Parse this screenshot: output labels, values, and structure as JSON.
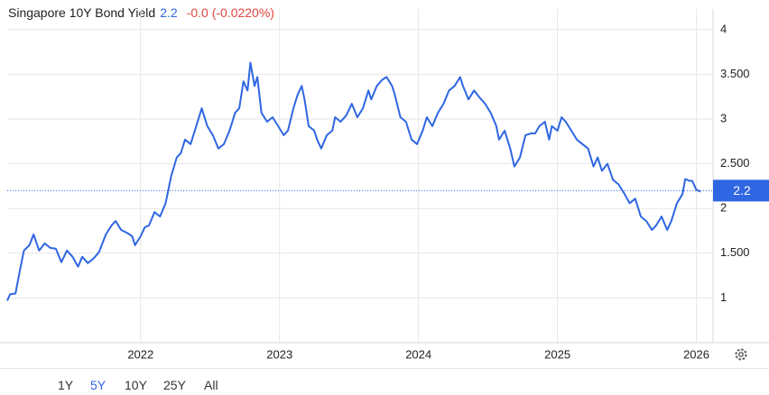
{
  "chart_data": {
    "type": "line",
    "title": "Singapore 10Y Bond Yield",
    "current_value": 2.2,
    "change": "-0.0 (-0.0220%)",
    "color": "#2f66e2",
    "x": [
      2021.04,
      2021.06,
      2021.1,
      2021.13,
      2021.16,
      2021.2,
      2021.23,
      2021.27,
      2021.31,
      2021.35,
      2021.39,
      2021.43,
      2021.47,
      2021.51,
      2021.55,
      2021.58,
      2021.62,
      2021.66,
      2021.7,
      2021.75,
      2021.79,
      2021.82,
      2021.86,
      2021.9,
      2021.94,
      2021.96,
      2022.0,
      2022.03,
      2022.06,
      2022.1,
      2022.14,
      2022.18,
      2022.22,
      2022.26,
      2022.29,
      2022.32,
      2022.36,
      2022.4,
      2022.44,
      2022.48,
      2022.52,
      2022.56,
      2022.6,
      2022.64,
      2022.68,
      2022.71,
      2022.74,
      2022.77,
      2022.79,
      2022.82,
      2022.84,
      2022.87,
      2022.91,
      2022.95,
      2022.99,
      2023.03,
      2023.06,
      2023.1,
      2023.13,
      2023.16,
      2023.18,
      2023.21,
      2023.25,
      2023.27,
      2023.3,
      2023.34,
      2023.38,
      2023.4,
      2023.44,
      2023.48,
      2023.52,
      2023.56,
      2023.6,
      2023.64,
      2023.66,
      2023.7,
      2023.74,
      2023.77,
      2023.81,
      2023.83,
      2023.87,
      2023.91,
      2023.95,
      2023.99,
      2024.03,
      2024.06,
      2024.1,
      2024.14,
      2024.18,
      2024.22,
      2024.26,
      2024.3,
      2024.32,
      2024.36,
      2024.4,
      2024.44,
      2024.48,
      2024.52,
      2024.56,
      2024.58,
      2024.62,
      2024.66,
      2024.69,
      2024.73,
      2024.77,
      2024.81,
      2024.84,
      2024.87,
      2024.91,
      2024.94,
      2024.96,
      2025.0,
      2025.03,
      2025.06,
      2025.1,
      2025.14,
      2025.18,
      2025.22,
      2025.26,
      2025.29,
      2025.32,
      2025.36,
      2025.4,
      2025.44,
      2025.48,
      2025.52,
      2025.56,
      2025.6,
      2025.64,
      2025.68,
      2025.71,
      2025.75,
      2025.79,
      2025.82,
      2025.86,
      2025.9,
      2025.92,
      2025.95,
      2025.97,
      2026.0,
      2026.03
    ],
    "values": [
      0.97,
      1.04,
      1.05,
      1.3,
      1.53,
      1.59,
      1.71,
      1.53,
      1.61,
      1.56,
      1.55,
      1.4,
      1.53,
      1.46,
      1.35,
      1.46,
      1.39,
      1.44,
      1.51,
      1.71,
      1.81,
      1.86,
      1.76,
      1.73,
      1.69,
      1.59,
      1.69,
      1.79,
      1.81,
      1.96,
      1.91,
      2.06,
      2.36,
      2.57,
      2.62,
      2.77,
      2.72,
      2.92,
      3.12,
      2.92,
      2.82,
      2.67,
      2.72,
      2.87,
      3.07,
      3.12,
      3.42,
      3.32,
      3.63,
      3.37,
      3.47,
      3.07,
      2.97,
      3.02,
      2.92,
      2.82,
      2.87,
      3.12,
      3.27,
      3.37,
      3.22,
      2.92,
      2.87,
      2.77,
      2.67,
      2.82,
      2.87,
      3.02,
      2.97,
      3.04,
      3.17,
      3.02,
      3.12,
      3.32,
      3.22,
      3.37,
      3.44,
      3.47,
      3.37,
      3.27,
      3.02,
      2.97,
      2.77,
      2.72,
      2.87,
      3.02,
      2.92,
      3.07,
      3.17,
      3.32,
      3.37,
      3.47,
      3.37,
      3.22,
      3.32,
      3.24,
      3.17,
      3.07,
      2.92,
      2.77,
      2.87,
      2.67,
      2.47,
      2.57,
      2.82,
      2.84,
      2.84,
      2.92,
      2.97,
      2.77,
      2.92,
      2.87,
      3.02,
      2.97,
      2.87,
      2.77,
      2.72,
      2.67,
      2.47,
      2.57,
      2.42,
      2.5,
      2.32,
      2.27,
      2.17,
      2.06,
      2.11,
      1.91,
      1.86,
      1.76,
      1.81,
      1.91,
      1.76,
      1.86,
      2.06,
      2.16,
      2.33,
      2.31,
      2.31,
      2.21,
      2.19
    ],
    "xlim": [
      2021.04,
      2026.12
    ],
    "xticks": [
      2022,
      2023,
      2024,
      2025,
      2026
    ],
    "ylim": [
      0.5,
      4.23
    ],
    "yticks": [
      1,
      {
        "value": 1.5,
        "label": "1.500"
      },
      2,
      {
        "value": 2.5,
        "label": "2.500"
      },
      3,
      {
        "value": 3.5,
        "label": "3.500"
      },
      4
    ],
    "grid": true,
    "ranges": [
      "1Y",
      "5Y",
      "10Y",
      "25Y",
      "All"
    ],
    "selected_range": "5Y"
  }
}
